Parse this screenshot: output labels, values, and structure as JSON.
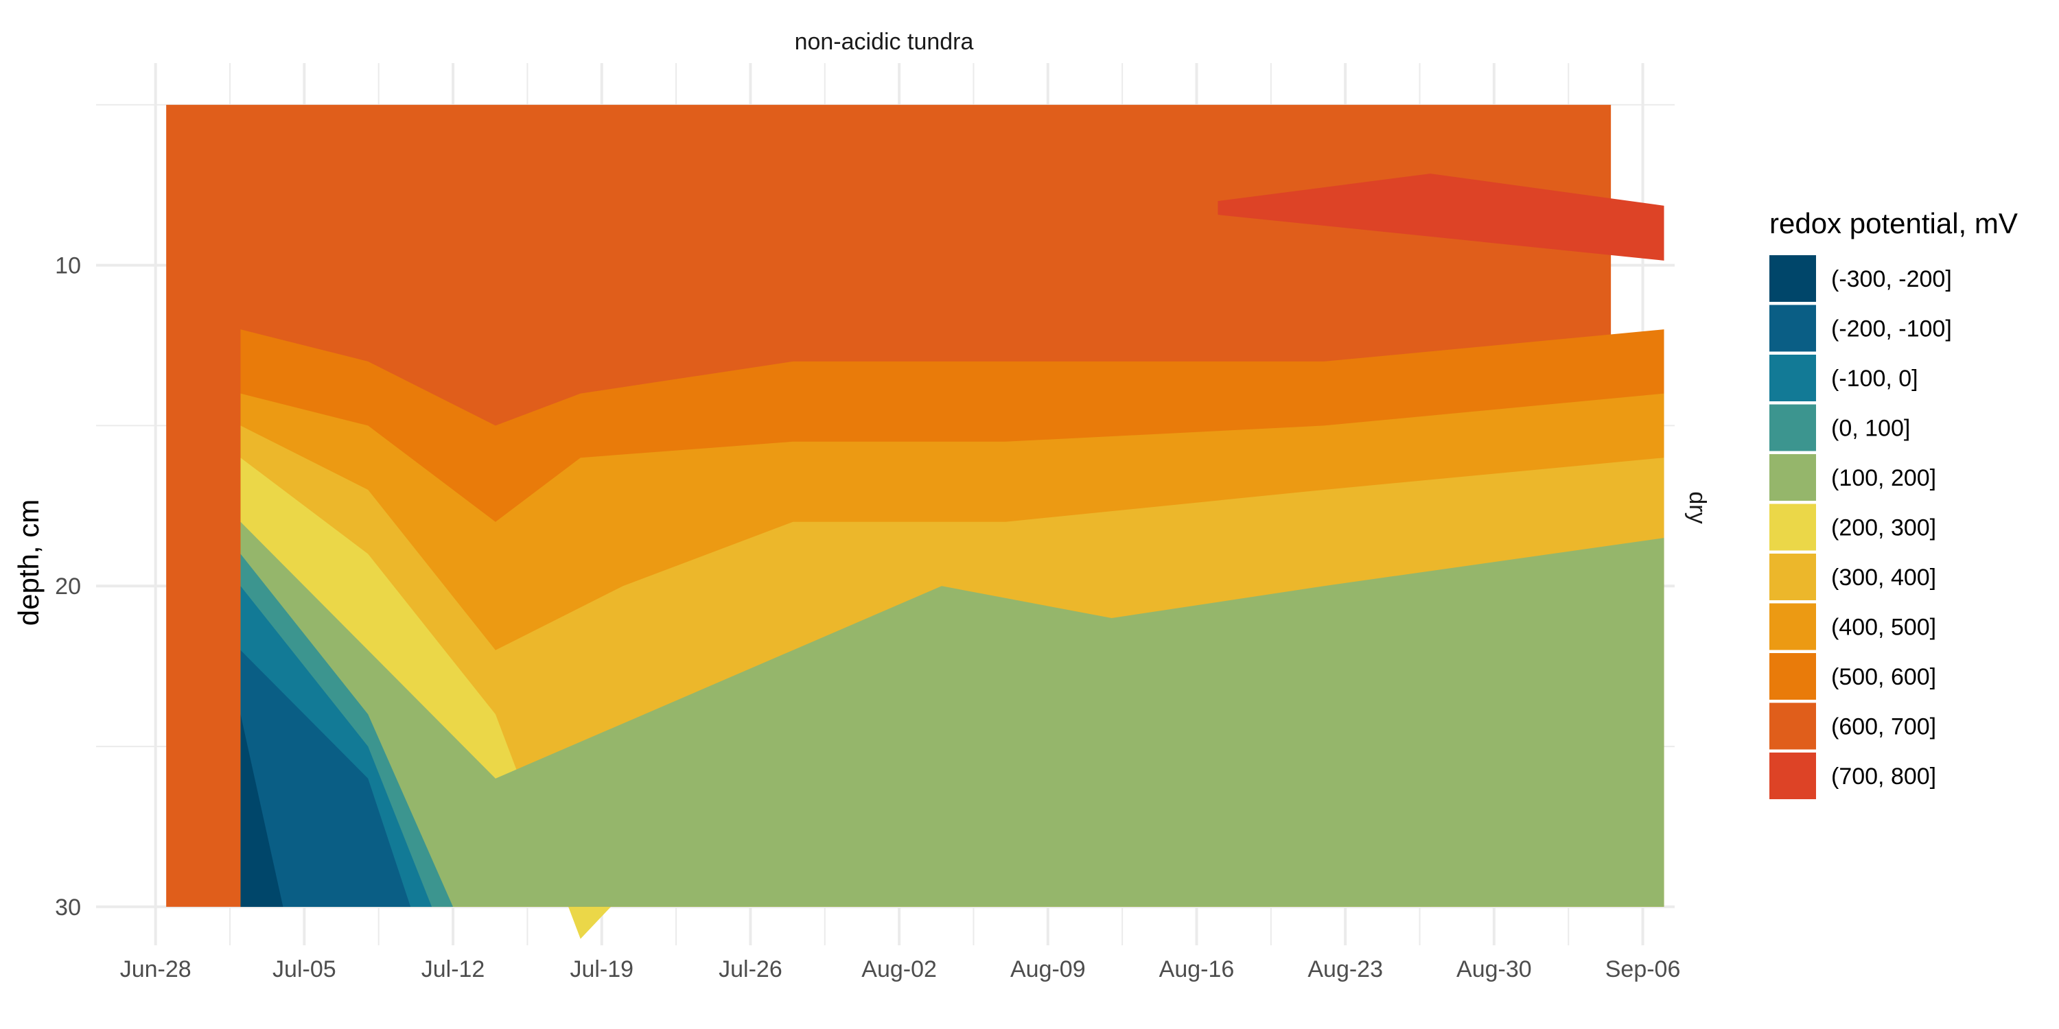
{
  "chart_data": {
    "type": "heatmap",
    "title": "non-acidic tundra",
    "facet_label": "dry",
    "xlabel": "",
    "ylabel": "depth, cm",
    "x_ticks": [
      "Jun-28",
      "Jul-05",
      "Jul-12",
      "Jul-19",
      "Jul-26",
      "Aug-02",
      "Aug-09",
      "Aug-16",
      "Aug-23",
      "Aug-30",
      "Sep-06"
    ],
    "x_range_days_from_jun28": [
      -2.8,
      71.5
    ],
    "y_ticks": [
      10,
      20,
      30
    ],
    "y_range": [
      31.2,
      3.7
    ],
    "y_reversed": true,
    "grid": true,
    "legend": {
      "title": "redox potential, mV",
      "position": "right",
      "items": [
        {
          "label": "(-300, -200]",
          "color": "#00466A"
        },
        {
          "label": "(-200, -100]",
          "color": "#0A5E85"
        },
        {
          "label": "(-100, 0]",
          "color": "#127A96"
        },
        {
          "label": "(0, 100]",
          "color": "#3C958F"
        },
        {
          "label": "(100, 200]",
          "color": "#95B66B"
        },
        {
          "label": "(200, 300]",
          "color": "#EBD748"
        },
        {
          "label": "(300, 400]",
          "color": "#ECB72B"
        },
        {
          "label": "(400, 500]",
          "color": "#EC9A13"
        },
        {
          "label": "(500, 600]",
          "color": "#E97B0A"
        },
        {
          "label": "(600, 700]",
          "color": "#E05E1B"
        },
        {
          "label": "(700, 800]",
          "color": "#DD4326"
        }
      ]
    },
    "bands": [
      {
        "class": "(600, 700]",
        "points": [
          [
            4,
            5
          ],
          [
            15,
            5
          ],
          [
            20,
            7
          ],
          [
            30,
            9
          ],
          [
            35,
            10
          ],
          [
            45,
            11
          ],
          [
            55,
            11
          ],
          [
            71,
            10
          ]
        ]
      },
      {
        "class": "(500, 600]",
        "points": [
          [
            4,
            12
          ],
          [
            10,
            13
          ],
          [
            16,
            15
          ],
          [
            20,
            14
          ],
          [
            30,
            13
          ],
          [
            40,
            13
          ],
          [
            55,
            13
          ],
          [
            71,
            12
          ]
        ]
      },
      {
        "class": "(400, 500]",
        "points": [
          [
            4,
            14
          ],
          [
            10,
            15
          ],
          [
            16,
            18
          ],
          [
            20,
            16
          ],
          [
            30,
            15.5
          ],
          [
            40,
            15.5
          ],
          [
            55,
            15
          ],
          [
            71,
            14
          ]
        ]
      },
      {
        "class": "(300, 400]",
        "points": [
          [
            4,
            15
          ],
          [
            10,
            17
          ],
          [
            16,
            22
          ],
          [
            22,
            20
          ],
          [
            30,
            18
          ],
          [
            40,
            18
          ],
          [
            55,
            17
          ],
          [
            71,
            16
          ]
        ]
      },
      {
        "class": "(200, 300]",
        "points": [
          [
            4,
            16
          ],
          [
            10,
            19
          ],
          [
            16,
            24
          ],
          [
            20,
            31
          ],
          [
            30,
            24
          ],
          [
            40,
            24
          ],
          [
            45,
            26
          ],
          [
            60,
            30
          ],
          [
            71,
            28
          ]
        ]
      },
      {
        "class": "(100, 200]",
        "points": [
          [
            4,
            18
          ],
          [
            10,
            22
          ],
          [
            16,
            26
          ],
          [
            37,
            20
          ],
          [
            45,
            21
          ],
          [
            55,
            20
          ],
          [
            71,
            18.5
          ]
        ]
      },
      {
        "class": "(0, 100]",
        "points": [
          [
            4,
            19
          ],
          [
            10,
            24
          ],
          [
            14,
            30
          ]
        ]
      },
      {
        "class": "(-100, 0]",
        "points": [
          [
            4,
            20
          ],
          [
            10,
            25
          ],
          [
            13,
            30
          ]
        ]
      },
      {
        "class": "(-200, -100]",
        "points": [
          [
            4,
            22
          ],
          [
            10,
            26
          ],
          [
            12,
            30
          ]
        ]
      },
      {
        "class": "(-300, -200]",
        "points": [
          [
            4,
            24
          ],
          [
            6,
            30
          ]
        ]
      },
      {
        "class": "(700, 800]",
        "points": [
          [
            50,
            8
          ],
          [
            60,
            8
          ],
          [
            71,
            9
          ]
        ]
      }
    ]
  }
}
